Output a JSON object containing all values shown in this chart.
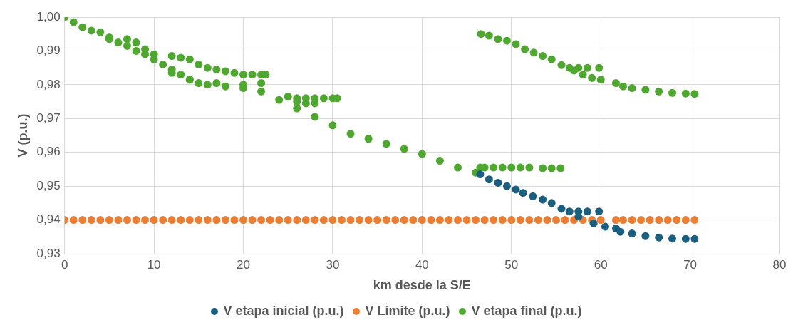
{
  "chart_data": {
    "type": "scatter",
    "xlabel": "km desde la S/E",
    "ylabel": "V (p.u.)",
    "xlim": [
      0,
      80
    ],
    "xticks": [
      0,
      10,
      20,
      30,
      40,
      50,
      60,
      70,
      80
    ],
    "ylim": [
      0.93,
      1.0
    ],
    "yticks": [
      {
        "value": 0.93,
        "label": "0,93"
      },
      {
        "value": 0.94,
        "label": "0,94"
      },
      {
        "value": 0.95,
        "label": "0,95"
      },
      {
        "value": 0.96,
        "label": "0,96"
      },
      {
        "value": 0.97,
        "label": "0,97"
      },
      {
        "value": 0.98,
        "label": "0,98"
      },
      {
        "value": 0.99,
        "label": "0,99"
      },
      {
        "value": 1.0,
        "label": "1,00"
      }
    ],
    "grid": true,
    "legend": "bottom",
    "marker": "circle",
    "series": [
      {
        "name": "V etapa inicial (p.u.)",
        "color": "#1a5f80",
        "x": [
          46.5,
          47.5,
          48.5,
          49.5,
          50.5,
          51.3,
          52.4,
          53.5,
          54.5,
          55.6,
          56.5,
          57.5,
          58.5,
          59.8,
          57.5,
          59.2,
          60.5,
          61.7,
          62.2,
          63.5,
          65,
          66.5,
          68,
          69.5,
          70.5
        ],
        "values": [
          0.9535,
          0.952,
          0.951,
          0.95,
          0.949,
          0.948,
          0.947,
          0.946,
          0.945,
          0.9433,
          0.9425,
          0.9425,
          0.9425,
          0.9425,
          0.941,
          0.939,
          0.938,
          0.9375,
          0.9365,
          0.936,
          0.9352,
          0.9348,
          0.9345,
          0.9344,
          0.9344
        ]
      },
      {
        "name": "V Límite (p.u.)",
        "color": "#ed7d31",
        "x": [
          0,
          1,
          2,
          3,
          4,
          5,
          6,
          7,
          8,
          9,
          10,
          11,
          12,
          13,
          14,
          15,
          16,
          17,
          18,
          19,
          20,
          21,
          22,
          23,
          24,
          25,
          26,
          27,
          28,
          29,
          30,
          31,
          32,
          33,
          34,
          35,
          36,
          37,
          38,
          39,
          40,
          41,
          42,
          43,
          44,
          45,
          46,
          47,
          48,
          49,
          50,
          51,
          52,
          53,
          54,
          55,
          56,
          57,
          58,
          59,
          60,
          61.7,
          62.5,
          63.5,
          64.5,
          65.5,
          66.5,
          67.5,
          68.5,
          69.5,
          70.5
        ],
        "values": [
          0.94,
          0.94,
          0.94,
          0.94,
          0.94,
          0.94,
          0.94,
          0.94,
          0.94,
          0.94,
          0.94,
          0.94,
          0.94,
          0.94,
          0.94,
          0.94,
          0.94,
          0.94,
          0.94,
          0.94,
          0.94,
          0.94,
          0.94,
          0.94,
          0.94,
          0.94,
          0.94,
          0.94,
          0.94,
          0.94,
          0.94,
          0.94,
          0.94,
          0.94,
          0.94,
          0.94,
          0.94,
          0.94,
          0.94,
          0.94,
          0.94,
          0.94,
          0.94,
          0.94,
          0.94,
          0.94,
          0.94,
          0.94,
          0.94,
          0.94,
          0.94,
          0.94,
          0.94,
          0.94,
          0.94,
          0.94,
          0.94,
          0.94,
          0.94,
          0.94,
          0.94,
          0.94,
          0.94,
          0.94,
          0.94,
          0.94,
          0.94,
          0.94,
          0.94,
          0.94,
          0.94
        ]
      },
      {
        "name": "V etapa final (p.u.)",
        "color": "#4ea72e",
        "x": [
          0,
          1,
          2,
          3,
          4,
          5,
          6,
          7,
          8,
          9,
          10,
          11,
          12,
          13,
          14,
          15,
          16,
          18,
          20,
          22,
          24,
          26,
          28,
          30,
          32,
          34,
          36,
          38,
          40,
          42,
          44,
          46,
          5,
          7,
          8,
          9,
          10,
          12,
          13,
          14,
          15,
          16,
          17,
          18,
          19,
          20,
          21,
          22,
          22.5,
          12,
          14,
          17,
          20,
          22,
          25,
          26,
          27,
          28,
          29,
          30,
          30.5,
          26,
          27,
          28,
          46.5,
          47,
          48,
          49,
          50,
          51,
          52,
          53.5,
          54.5,
          55.5,
          46.6,
          47.5,
          48.5,
          49.5,
          50.5,
          51.5,
          52.5,
          53.5,
          54.5,
          55.6,
          56.5,
          57.5,
          58.5,
          59.8,
          57,
          58,
          59,
          60,
          61.7,
          62.5,
          63.5,
          65,
          66.5,
          68,
          69.5,
          70.5
        ],
        "values": [
          1.0,
          0.9985,
          0.997,
          0.996,
          0.9955,
          0.994,
          0.9925,
          0.9915,
          0.99,
          0.989,
          0.9875,
          0.986,
          0.9845,
          0.983,
          0.9815,
          0.9805,
          0.98,
          0.9795,
          0.979,
          0.978,
          0.9755,
          0.973,
          0.9705,
          0.968,
          0.9655,
          0.964,
          0.9625,
          0.961,
          0.9595,
          0.9575,
          0.9555,
          0.954,
          0.9935,
          0.9935,
          0.9925,
          0.9905,
          0.989,
          0.9885,
          0.988,
          0.9875,
          0.986,
          0.985,
          0.9845,
          0.984,
          0.9835,
          0.983,
          0.983,
          0.983,
          0.983,
          0.9835,
          0.9815,
          0.9805,
          0.98,
          0.9805,
          0.9765,
          0.976,
          0.976,
          0.976,
          0.976,
          0.976,
          0.976,
          0.975,
          0.9745,
          0.9745,
          0.9555,
          0.9555,
          0.9555,
          0.9555,
          0.9555,
          0.9555,
          0.9555,
          0.9553,
          0.9553,
          0.9553,
          0.995,
          0.9945,
          0.9935,
          0.993,
          0.992,
          0.9905,
          0.9895,
          0.9885,
          0.9875,
          0.9858,
          0.985,
          0.985,
          0.985,
          0.985,
          0.9842,
          0.983,
          0.982,
          0.9815,
          0.9805,
          0.9795,
          0.979,
          0.9785,
          0.978,
          0.9776,
          0.9774,
          0.9773
        ]
      }
    ]
  }
}
